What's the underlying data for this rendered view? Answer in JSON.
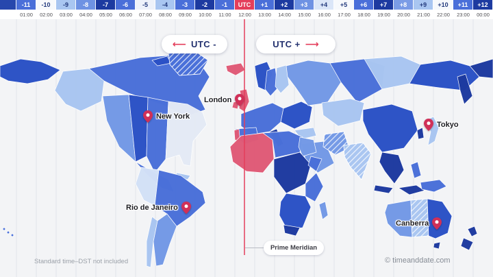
{
  "timebar": {
    "cells": [
      {
        "label": "",
        "time": "",
        "bg": "#2747ad",
        "fg": "#ffffff"
      },
      {
        "label": "-11",
        "time": "01:00",
        "bg": "#4a6fd9",
        "fg": "#ffffff"
      },
      {
        "label": "-10",
        "time": "02:00",
        "bg": "#f7f9fc",
        "fg": "#233a7d"
      },
      {
        "label": "-9",
        "time": "03:00",
        "bg": "#a9c6f1",
        "fg": "#233a7d"
      },
      {
        "label": "-8",
        "time": "04:00",
        "bg": "#6e92e3",
        "fg": "#ffffff"
      },
      {
        "label": "-7",
        "time": "05:00",
        "bg": "#1d3aa0",
        "fg": "#ffffff"
      },
      {
        "label": "-6",
        "time": "06:00",
        "bg": "#4a6fd9",
        "fg": "#ffffff"
      },
      {
        "label": "-5",
        "time": "07:00",
        "bg": "#eef2fa",
        "fg": "#233a7d"
      },
      {
        "label": "-4",
        "time": "08:00",
        "bg": "#a9c6f1",
        "fg": "#233a7d"
      },
      {
        "label": "-3",
        "time": "09:00",
        "bg": "#4a6fd9",
        "fg": "#ffffff"
      },
      {
        "label": "-2",
        "time": "10:00",
        "bg": "#1d3aa0",
        "fg": "#ffffff"
      },
      {
        "label": "-1",
        "time": "11:00",
        "bg": "#4a6fd9",
        "fg": "#ffffff"
      },
      {
        "label": "UTC",
        "time": "12:00",
        "bg": "#e43e5b",
        "fg": "#ffffff"
      },
      {
        "label": "+1",
        "time": "13:00",
        "bg": "#4a6fd9",
        "fg": "#ffffff"
      },
      {
        "label": "+2",
        "time": "14:00",
        "bg": "#1d3aa0",
        "fg": "#ffffff"
      },
      {
        "label": "+3",
        "time": "15:00",
        "bg": "#6e92e3",
        "fg": "#ffffff"
      },
      {
        "label": "+4",
        "time": "16:00",
        "bg": "#dbe6f8",
        "fg": "#233a7d"
      },
      {
        "label": "+5",
        "time": "17:00",
        "bg": "#f7f9fc",
        "fg": "#233a7d"
      },
      {
        "label": "+6",
        "time": "18:00",
        "bg": "#4a6fd9",
        "fg": "#ffffff"
      },
      {
        "label": "+7",
        "time": "19:00",
        "bg": "#1d3aa0",
        "fg": "#ffffff"
      },
      {
        "label": "+8",
        "time": "20:00",
        "bg": "#7b9ce6",
        "fg": "#ffffff"
      },
      {
        "label": "+9",
        "time": "21:00",
        "bg": "#a9c6f1",
        "fg": "#233a7d"
      },
      {
        "label": "+10",
        "time": "22:00",
        "bg": "#f7f9fc",
        "fg": "#233a7d"
      },
      {
        "label": "+11",
        "time": "23:00",
        "bg": "#4a6fd9",
        "fg": "#ffffff"
      },
      {
        "label": "+12",
        "time": "00:00",
        "bg": "#1d3aa0",
        "fg": "#ffffff"
      }
    ]
  },
  "legend": {
    "utc_minus": "UTC -",
    "utc_plus": "UTC +",
    "arrow_left": "⟵",
    "arrow_right": "⟶"
  },
  "cities": [
    {
      "name": "New York"
    },
    {
      "name": "London"
    },
    {
      "name": "Tokyo"
    },
    {
      "name": "Rio de Janeiro"
    },
    {
      "name": "Canberra"
    }
  ],
  "prime_meridian": {
    "label": "Prime Meridian"
  },
  "footer": {
    "note": "Standard time–DST not included",
    "credit": "© timeanddate.com"
  },
  "colors": {
    "utc_red": "#e43e5b",
    "zone_pink": "#e05a77",
    "pin": "#d03058",
    "ocean": "#f3f4f6",
    "z_navy": "#1d3aa0",
    "z_dark": "#2b51c6",
    "z_med": "#4a70d9",
    "z_medlt": "#7399e6",
    "z_light": "#a9c6f1",
    "z_pale": "#d3e1f7",
    "z_white": "#e4eaf5"
  }
}
